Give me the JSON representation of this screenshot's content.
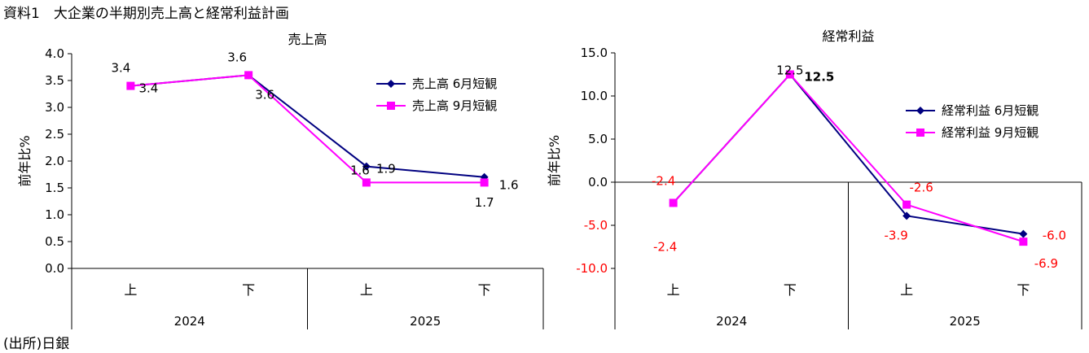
{
  "document": {
    "title": "資料1　大企業の半期別売上高と経常利益計画",
    "source": "(出所)日銀"
  },
  "chart_data": [
    {
      "type": "line",
      "title": "売上高",
      "ylabel": "前年比%",
      "ylim": [
        0,
        4
      ],
      "yticks": [
        "0.0",
        "0.5",
        "1.0",
        "1.5",
        "2.0",
        "2.5",
        "3.0",
        "3.5",
        "4.0"
      ],
      "categories": [
        "上",
        "下",
        "上",
        "下"
      ],
      "groups": [
        {
          "label": "2024",
          "span": 2
        },
        {
          "label": "2025",
          "span": 2
        }
      ],
      "series": [
        {
          "name": "売上高 6月短観",
          "color": "#000080",
          "marker": "diamond",
          "values": [
            3.4,
            3.6,
            1.9,
            1.7
          ],
          "labels": [
            "3.4",
            "3.6",
            "1.9",
            "1.7"
          ]
        },
        {
          "name": "売上高 9月短観",
          "color": "#ff00ff",
          "marker": "square",
          "values": [
            3.4,
            3.6,
            1.6,
            1.6
          ],
          "labels": [
            "3.4",
            "3.6",
            "1.6",
            "1.6"
          ]
        }
      ]
    },
    {
      "type": "line",
      "title": "経常利益",
      "ylabel": "前年比%",
      "ylim": [
        -10,
        15
      ],
      "yticks": [
        "-10.0",
        "-5.0",
        "0.0",
        "5.0",
        "10.0",
        "15.0"
      ],
      "categories": [
        "上",
        "下",
        "上",
        "下"
      ],
      "groups": [
        {
          "label": "2024",
          "span": 2
        },
        {
          "label": "2025",
          "span": 2
        }
      ],
      "series": [
        {
          "name": "経常利益 6月短観",
          "color": "#000080",
          "marker": "diamond",
          "values": [
            -2.4,
            12.5,
            -3.9,
            -6.0
          ],
          "labels": [
            "-2.4",
            "12.5",
            "-3.9",
            "-6.0"
          ]
        },
        {
          "name": "経常利益 9月短観",
          "color": "#ff00ff",
          "marker": "square",
          "values": [
            -2.4,
            12.5,
            -2.6,
            -6.9
          ],
          "labels": [
            "-2.4",
            "12.5",
            "-2.6",
            "-6.9"
          ]
        }
      ],
      "negative_color": "#ff0000"
    }
  ]
}
